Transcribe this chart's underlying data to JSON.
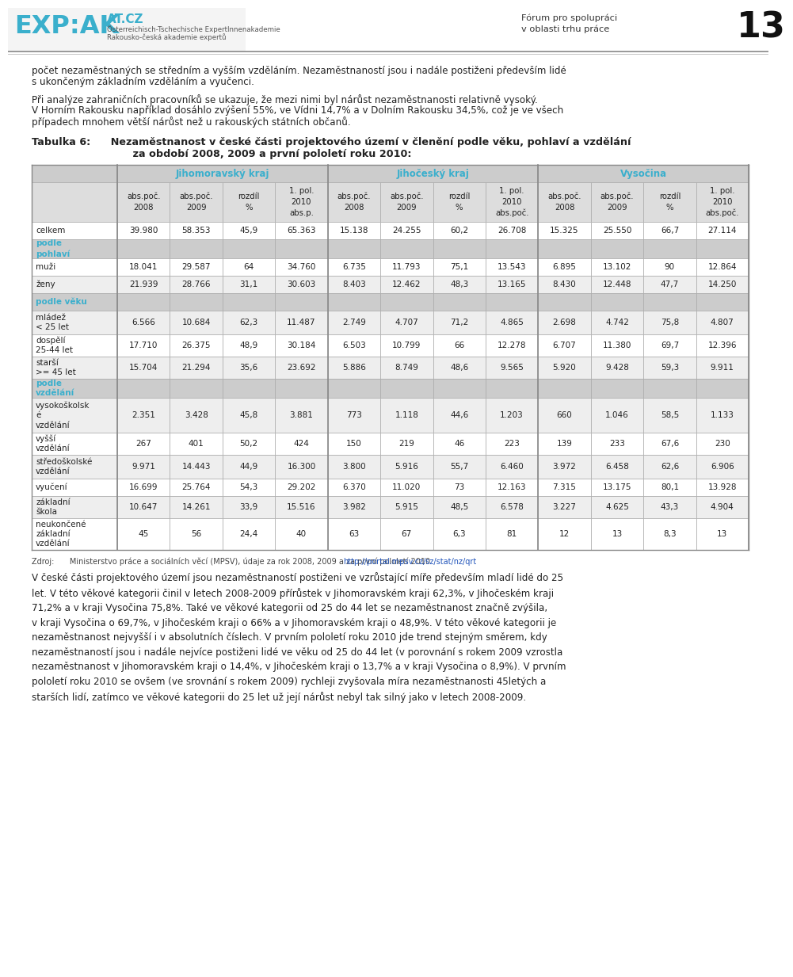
{
  "page_number": "13",
  "header_right1": "Fórum pro spolupráci",
  "header_right2": "v oblasti trhu práce",
  "logo_main": "EXP:AK",
  "logo_sub1": "AT.CZ",
  "logo_sub2": "Österreichisch-Tschechische ExpertInnenakademie",
  "logo_sub3": "Rakousko-česká akademie expertů",
  "para1_line1": "počet nezaměstnaných se středním a vyšším vzděláním. Nezaměstnaností jsou i nadále postiženi především lidé",
  "para1_line2": "s ukončeným základním vzděláním a vyučenci.",
  "para2_line1": "Při analýze zahraničních pracovníků se ukazuje, že mezi nimi byl nárůst nezaměstnanosti relativně vysoký.",
  "para2_line2": "V Horním Rakousku například dosáhlo zvýšení 55%, ve Vídni 14,7% a v Dolním Rakousku 34,5%, což je ve všech",
  "para2_line3": "případech mnohem větší nárůst než u rakouských státních občanů.",
  "table_title_1": "Tabulka 6:  Nezaměstnanost v české části projektového území v členění podle věku, pohlaví a vzdělání",
  "table_title_2": "          za období 2008, 2009 a první pololetí roku 2010:",
  "col_groups": [
    "Jihomoravský kraj",
    "Jihočeský kraj",
    "Vysočina"
  ],
  "col_headers": [
    [
      "abs.poč.",
      "2008"
    ],
    [
      "abs.poč.",
      "2009"
    ],
    [
      "rozdíl",
      "%"
    ],
    [
      "1. pol.",
      "2010",
      "abs.p."
    ],
    [
      "abs.poč.",
      "2008"
    ],
    [
      "abs.poč.",
      "2009"
    ],
    [
      "rozdíl",
      "%"
    ],
    [
      "1. pol.",
      "2010",
      "abs.poč."
    ],
    [
      "abs.poč.",
      "2008"
    ],
    [
      "abs.poč.",
      "2009"
    ],
    [
      "rozdíl",
      "%"
    ],
    [
      "1. pol.",
      "2010",
      "abs.poč."
    ]
  ],
  "row_labels": [
    [
      "celkem"
    ],
    [
      "podle",
      "pohlaví"
    ],
    [
      "muži"
    ],
    [
      "ženy"
    ],
    [
      "podle věku"
    ],
    [
      "mládež",
      "< 25 let"
    ],
    [
      "dospělí",
      "25-44 let"
    ],
    [
      "starší",
      ">= 45 let"
    ],
    [
      "podle",
      "vzdělání"
    ],
    [
      "vysokoškolsk",
      "é",
      "vzdělání"
    ],
    [
      "vyšší",
      "vzdělání"
    ],
    [
      "středoškolské",
      "vzdělání"
    ],
    [
      "vyučení"
    ],
    [
      "základní",
      "škola"
    ],
    [
      "neukončené",
      "základní",
      "vzdělání"
    ]
  ],
  "row_is_header": [
    false,
    true,
    false,
    false,
    true,
    false,
    false,
    false,
    true,
    false,
    false,
    false,
    false,
    false,
    false
  ],
  "table_data": [
    [
      "39.980",
      "58.353",
      "45,9",
      "65.363",
      "15.138",
      "24.255",
      "60,2",
      "26.708",
      "15.325",
      "25.550",
      "66,7",
      "27.114"
    ],
    [
      "",
      "",
      "",
      "",
      "",
      "",
      "",
      "",
      "",
      "",
      "",
      ""
    ],
    [
      "18.041",
      "29.587",
      "64",
      "34.760",
      "6.735",
      "11.793",
      "75,1",
      "13.543",
      "6.895",
      "13.102",
      "90",
      "12.864"
    ],
    [
      "21.939",
      "28.766",
      "31,1",
      "30.603",
      "8.403",
      "12.462",
      "48,3",
      "13.165",
      "8.430",
      "12.448",
      "47,7",
      "14.250"
    ],
    [
      "",
      "",
      "",
      "",
      "",
      "",
      "",
      "",
      "",
      "",
      "",
      ""
    ],
    [
      "6.566",
      "10.684",
      "62,3",
      "11.487",
      "2.749",
      "4.707",
      "71,2",
      "4.865",
      "2.698",
      "4.742",
      "75,8",
      "4.807"
    ],
    [
      "17.710",
      "26.375",
      "48,9",
      "30.184",
      "6.503",
      "10.799",
      "66",
      "12.278",
      "6.707",
      "11.380",
      "69,7",
      "12.396"
    ],
    [
      "15.704",
      "21.294",
      "35,6",
      "23.692",
      "5.886",
      "8.749",
      "48,6",
      "9.565",
      "5.920",
      "9.428",
      "59,3",
      "9.911"
    ],
    [
      "",
      "",
      "",
      "",
      "",
      "",
      "",
      "",
      "",
      "",
      "",
      ""
    ],
    [
      "2.351",
      "3.428",
      "45,8",
      "3.881",
      "773",
      "1.118",
      "44,6",
      "1.203",
      "660",
      "1.046",
      "58,5",
      "1.133"
    ],
    [
      "267",
      "401",
      "50,2",
      "424",
      "150",
      "219",
      "46",
      "223",
      "139",
      "233",
      "67,6",
      "230"
    ],
    [
      "9.971",
      "14.443",
      "44,9",
      "16.300",
      "3.800",
      "5.916",
      "55,7",
      "6.460",
      "3.972",
      "6.458",
      "62,6",
      "6.906"
    ],
    [
      "16.699",
      "25.764",
      "54,3",
      "29.202",
      "6.370",
      "11.020",
      "73",
      "12.163",
      "7.315",
      "13.175",
      "80,1",
      "13.928"
    ],
    [
      "10.647",
      "14.261",
      "33,9",
      "15.516",
      "3.982",
      "5.915",
      "48,5",
      "6.578",
      "3.227",
      "4.625",
      "43,3",
      "4.904"
    ],
    [
      "45",
      "56",
      "24,4",
      "40",
      "63",
      "67",
      "6,3",
      "81",
      "12",
      "13",
      "8,3",
      "13"
    ]
  ],
  "source_pre": "Zdroj:  Ministerstvo práce a sociálních věcí (MPSV), údaje za rok 2008, 2009 a za první pololetí 2010 ",
  "source_url": "http://portal.mpsv.cz/sz/stat/nz/qrt",
  "para3": "V české části projektového území jsou nezaměstnaností postiženi ve vzrůstající míře především mladí lidé do 25\nlet. V této věkové kategorii činil v letech 2008-2009 přírůstek v Jihomoravském kraji 62,3%, v Jihočeském kraji\n71,2% a v kraji Vysočina 75,8%. Také ve věkové kategorii od 25 do 44 let se nezaměstnanost značně zvýšila,\nv kraji Vysočina o 69,7%, v Jihočeském kraji o 66% a v Jihomoravském kraji o 48,9%. V této věkové kategorii je\nnezaměstnanost nejvyšší i v absolutních číslech. V prvním pololetí roku 2010 jde trend stejným směrem, kdy\nnezaměstnaností jsou i nadále nejvíce postiženi lidé ve věku od 25 do 44 let (v porovnání s rokem 2009 vzrostla\nnezaměstnanost v Jihomoravském kraji o 14,4%, v Jihočeském kraji o 13,7% a v kraji Vysočina o 8,9%). V prvním\npololetí roku 2010 se ovšem (ve srovnání s rokem 2009) rychleji zvyšovala míra nezaměstnanosti 45letých a\nstarších lidí, zatímco ve věkové kategorii do 25 let už její nárůst nebyl tak silný jako v letech 2008-2009.",
  "teal": "#3aafcc",
  "gray_header_bg": "#cccccc",
  "gray_subheader_bg": "#dddddd",
  "gray_light": "#eeeeee",
  "white": "#ffffff",
  "dark_text": "#222222",
  "mid_gray": "#999999",
  "border_color": "#aaaaaa"
}
